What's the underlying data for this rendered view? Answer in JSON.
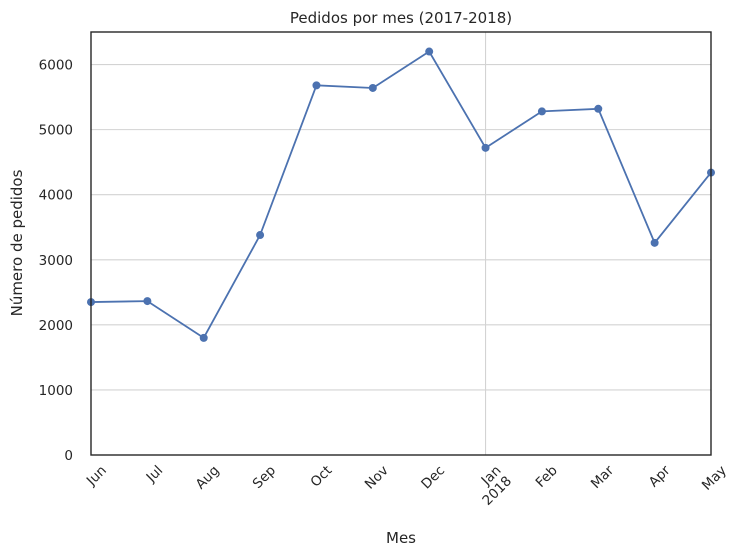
{
  "chart_data": {
    "type": "line",
    "title": "Pedidos por mes (2017-2018)",
    "xlabel": "Mes",
    "ylabel": "Número de pedidos",
    "ylim": [
      0,
      6500
    ],
    "yticks": [
      0,
      1000,
      2000,
      3000,
      4000,
      5000,
      6000
    ],
    "grid": true,
    "color": "#4c72b0",
    "x": [
      "2017-06",
      "2017-07",
      "2017-08",
      "2017-09",
      "2017-10",
      "2017-11",
      "2017-12",
      "2018-01",
      "2018-02",
      "2018-03",
      "2018-04",
      "2018-05"
    ],
    "xtick_labels": [
      [
        "Jun"
      ],
      [
        "Jul"
      ],
      [
        "Aug"
      ],
      [
        "Sep"
      ],
      [
        "Oct"
      ],
      [
        "Nov"
      ],
      [
        "Dec"
      ],
      [
        "Jan",
        "2018"
      ],
      [
        "Feb"
      ],
      [
        "Mar"
      ],
      [
        "Apr"
      ],
      [
        "May"
      ]
    ],
    "series": [
      {
        "values": [
          2350,
          2365,
          1800,
          3380,
          5680,
          5640,
          6200,
          4720,
          5280,
          5320,
          3260,
          4340
        ]
      }
    ]
  }
}
